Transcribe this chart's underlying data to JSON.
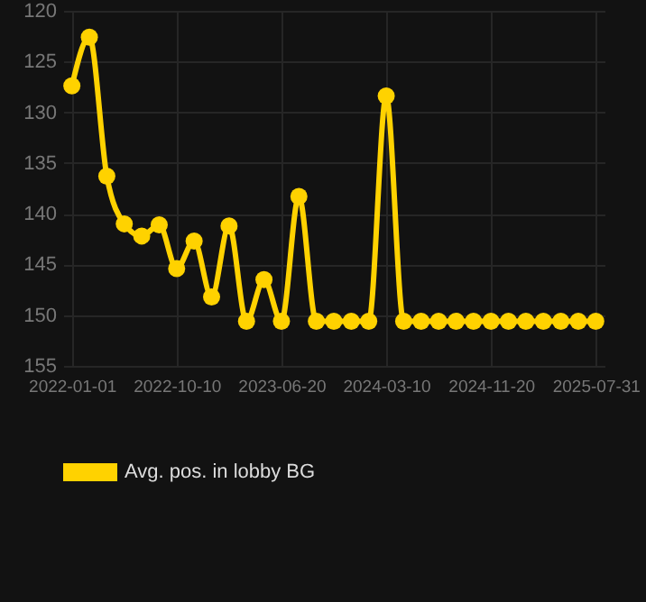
{
  "chart_data": {
    "type": "line",
    "categories": [
      "2022-01-01",
      null,
      null,
      null,
      null,
      null,
      "2022-10-10",
      null,
      null,
      null,
      null,
      null,
      "2023-06-20",
      null,
      null,
      null,
      null,
      null,
      "2024-03-10",
      null,
      null,
      null,
      null,
      null,
      "2024-11-20",
      null,
      null,
      null,
      null,
      null,
      "2025-07-31"
    ],
    "series": [
      {
        "name": "Avg. pos. in lobby BG",
        "color": "#ffd200",
        "values": [
          127.4,
          122.6,
          136.3,
          141.0,
          142.2,
          141.1,
          145.4,
          142.7,
          148.2,
          141.2,
          150.6,
          146.5,
          150.6,
          138.3,
          150.6,
          150.6,
          150.6,
          150.6,
          128.4,
          150.6,
          150.6,
          150.6,
          150.6,
          150.6,
          150.6,
          150.6,
          150.6,
          150.6,
          150.6,
          150.6,
          150.6
        ]
      }
    ],
    "ylim": [
      155,
      120
    ],
    "yticks": [
      120,
      125,
      130,
      135,
      140,
      145,
      150,
      155
    ],
    "grid": true,
    "legend": "bottom",
    "marker": "circle",
    "line_style": "solid"
  }
}
